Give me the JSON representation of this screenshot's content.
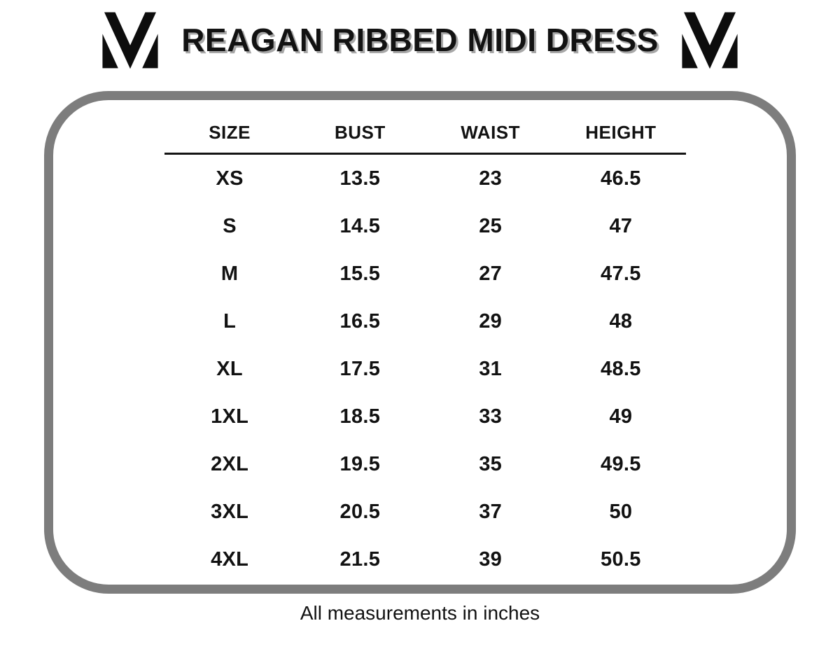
{
  "title": "REAGAN RIBBED MIDI DRESS",
  "footer_note": "All measurements in inches",
  "colors": {
    "text": "#121212",
    "border_gray": "#7d7d7d",
    "title_shadow": "#a8a8a8",
    "logo_black": "#0d0d0d"
  },
  "icons": {
    "left_logo": "mm-monogram-icon",
    "right_logo": "mm-monogram-icon"
  },
  "size_table": {
    "columns": [
      "SIZE",
      "BUST",
      "WAIST",
      "HEIGHT"
    ],
    "rows": [
      [
        "XS",
        "13.5",
        "23",
        "46.5"
      ],
      [
        "S",
        "14.5",
        "25",
        "47"
      ],
      [
        "M",
        "15.5",
        "27",
        "47.5"
      ],
      [
        "L",
        "16.5",
        "29",
        "48"
      ],
      [
        "XL",
        "17.5",
        "31",
        "48.5"
      ],
      [
        "1XL",
        "18.5",
        "33",
        "49"
      ],
      [
        "2XL",
        "19.5",
        "35",
        "49.5"
      ],
      [
        "3XL",
        "20.5",
        "37",
        "50"
      ],
      [
        "4XL",
        "21.5",
        "39",
        "50.5"
      ]
    ]
  }
}
